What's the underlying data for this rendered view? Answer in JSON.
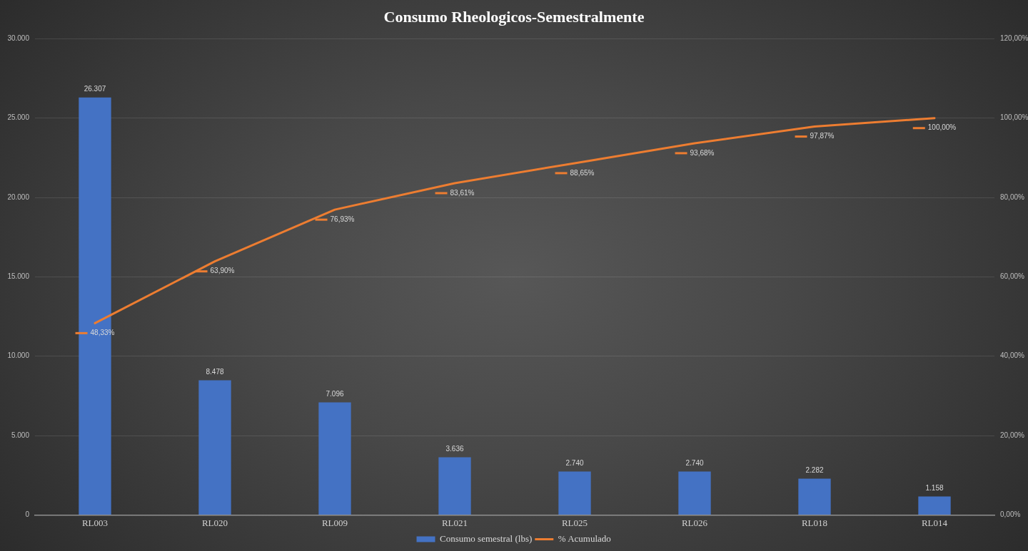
{
  "chart_data": {
    "type": "bar",
    "title": "Consumo Rheologicos-Semestralmente",
    "categories": [
      "RL003",
      "RL020",
      "RL009",
      "RL021",
      "RL025",
      "RL026",
      "RL018",
      "RL014"
    ],
    "series": [
      {
        "name": "Consumo semestral (lbs)",
        "type": "bar",
        "color": "#4472c4",
        "values": [
          26307,
          8478,
          7096,
          3636,
          2740,
          2740,
          2282,
          1158
        ],
        "value_labels": [
          "26.307",
          "8.478",
          "7.096",
          "3.636",
          "2.740",
          "2.740",
          "2.282",
          "1.158"
        ]
      },
      {
        "name": "% Acumulado",
        "type": "line",
        "axis": "y2",
        "color": "#ed7d31",
        "values": [
          48.33,
          63.9,
          76.93,
          83.61,
          88.65,
          93.68,
          97.87,
          100
        ],
        "value_labels": [
          "48,33%",
          "63,90%",
          "76,93%",
          "83,61%",
          "88,65%",
          "93,68%",
          "97,87%",
          "100,00%"
        ]
      }
    ],
    "ylim": [
      0,
      30000
    ],
    "yticks": [
      0,
      {
        "value": 5000,
        "label": "5.000"
      },
      {
        "value": 10000,
        "label": "10.000"
      },
      {
        "value": 15000,
        "label": "15.000"
      },
      {
        "value": 20000,
        "label": "20.000"
      },
      {
        "value": 25000,
        "label": "25.000"
      },
      {
        "value": 30000,
        "label": "30.000"
      }
    ],
    "y2lim": [
      0,
      120
    ],
    "y2ticks": [
      {
        "value": 0,
        "label": "0,00%"
      },
      {
        "value": 20,
        "label": "20,00%"
      },
      {
        "value": 40,
        "label": "40,00%"
      },
      {
        "value": 60,
        "label": "60,00%"
      },
      {
        "value": 80,
        "label": "80,00%"
      },
      {
        "value": 100,
        "label": "100,00%"
      },
      {
        "value": 120,
        "label": "120,00%"
      }
    ],
    "grid": "y",
    "legend": "bottom",
    "marker": "none",
    "line_style": "solid"
  }
}
